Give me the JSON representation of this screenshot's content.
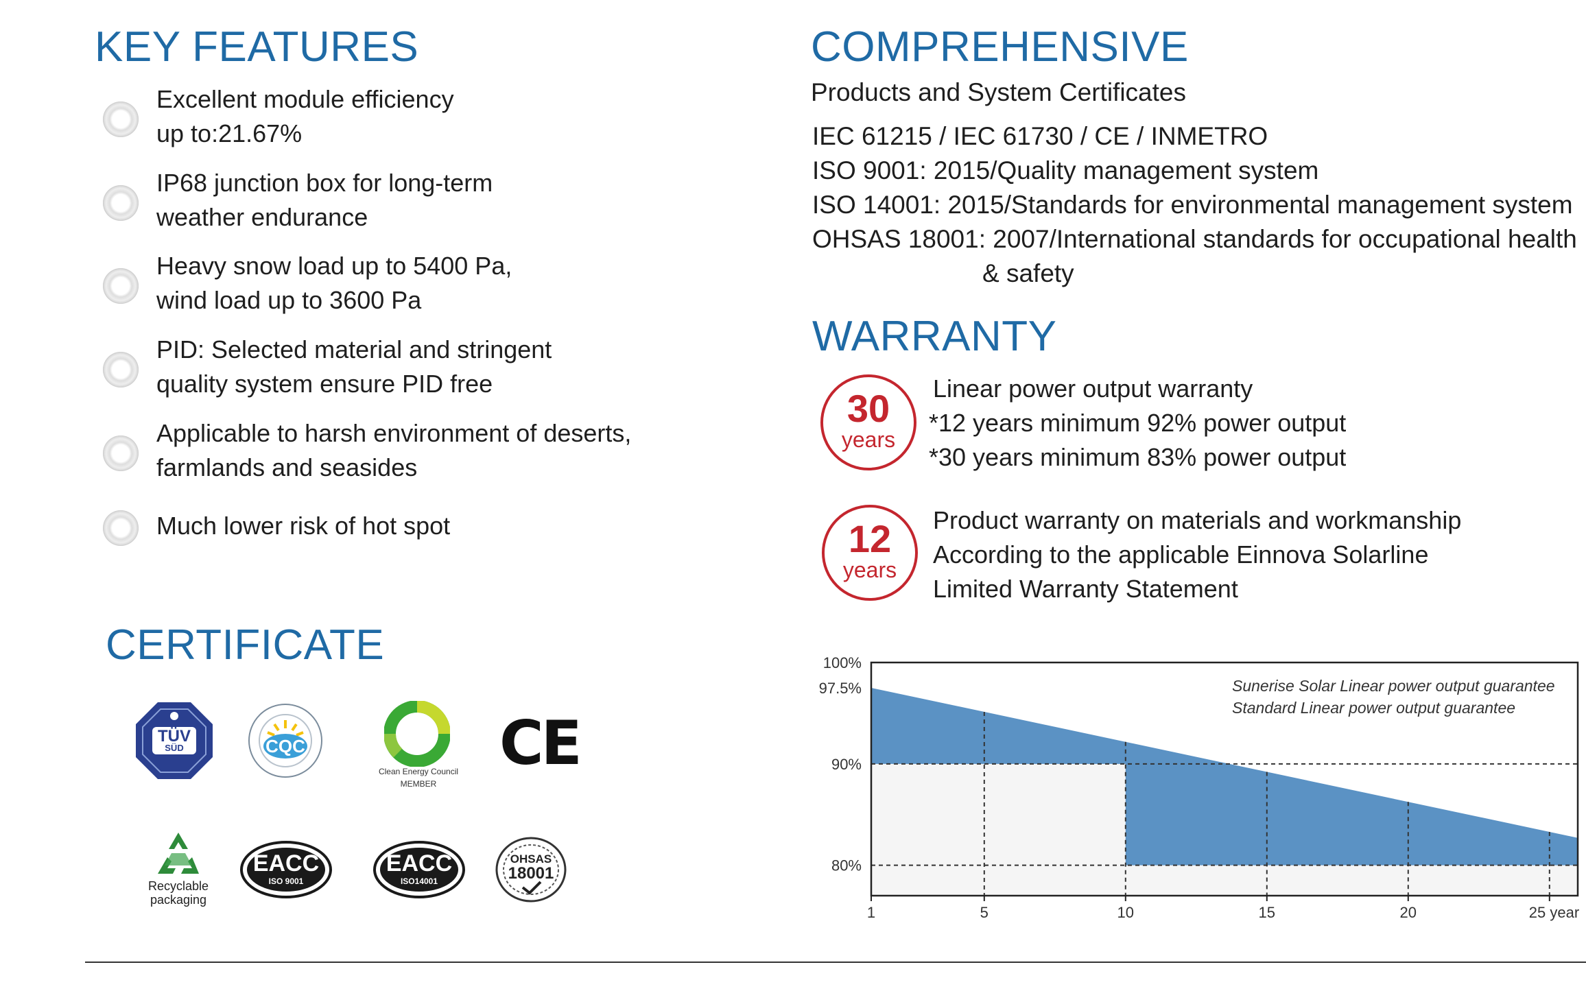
{
  "key_features": {
    "title": "KEY FEATURES",
    "items": [
      {
        "line1": "Excellent module efficiency",
        "line2": "up to:21.67%"
      },
      {
        "line1": "IP68 junction box for long-term",
        "line2": "weather endurance"
      },
      {
        "line1": "Heavy snow load up to 5400 Pa,",
        "line2": "wind load up to 3600 Pa"
      },
      {
        "line1": "PID: Selected material and stringent",
        "line2": "quality system ensure PID free"
      },
      {
        "line1": "Applicable to harsh environment of deserts,",
        "line2": "farmlands and seasides"
      },
      {
        "line1": "Much lower risk of  hot spot",
        "line2": ""
      }
    ]
  },
  "certificate": {
    "title": "CERTIFICATE",
    "logos": {
      "tuv": "TÜV",
      "tuv_sub": "SÜD",
      "cqc": "CQC",
      "cec_line1": "Clean Energy Council",
      "cec_line2": "MEMBER",
      "ce": "CE",
      "recycle_line1": "Recyclable",
      "recycle_line2": "packaging",
      "eacc1": "EACC",
      "eacc1_sub": "ISO 9001",
      "eacc2": "EACC",
      "eacc2_sub": "ISO14001",
      "ohsas": "OHSAS",
      "ohsas_num": "18001"
    }
  },
  "comprehensive": {
    "title": "COMPREHENSIVE",
    "subtitle": "Products and System Certificates",
    "lines": [
      "IEC 61215 / IEC 61730 / CE / INMETRO",
      "ISO 9001: 2015/Quality management system",
      "ISO 14001: 2015/Standards for environmental management system",
      "OHSAS 18001: 2007/International standards for occupational health",
      "& safety"
    ]
  },
  "warranty": {
    "title": "WARRANTY",
    "badges": [
      {
        "num": "30",
        "unit": "years",
        "lines": [
          "Linear power output warranty",
          "*12 years minimum 92% power output",
          "*30 years minimum 83% power output"
        ]
      },
      {
        "num": "12",
        "unit": "years",
        "lines": [
          "Product warranty on materials and workmanship",
          "According to the applicable Einnova Solarline",
          "Limited Warranty Statement"
        ]
      }
    ]
  },
  "chart_data": {
    "type": "area",
    "x_ticks": [
      "1",
      "5",
      "10",
      "15",
      "20",
      "25 year"
    ],
    "y_ticks": [
      "100%",
      "97.5%",
      "90%",
      "80%"
    ],
    "xlim": [
      1,
      26
    ],
    "ylim": [
      77,
      100
    ],
    "legend": [
      "Sunerise Solar Linear power output guarantee",
      "Standard Linear power output guarantee"
    ],
    "legend_position": "top-right",
    "series": [
      {
        "name": "Sunerise Solar Linear power output guarantee",
        "x": [
          1,
          26
        ],
        "y": [
          97.5,
          82.7
        ],
        "color": "#5b92c4"
      },
      {
        "name": "Standard Linear power output guarantee",
        "x": [
          1,
          5,
          5,
          10,
          10,
          26
        ],
        "y": [
          90,
          90,
          90,
          90,
          80,
          80
        ],
        "color": "#f5f5f5"
      }
    ],
    "grid": "dashed at ticks"
  }
}
